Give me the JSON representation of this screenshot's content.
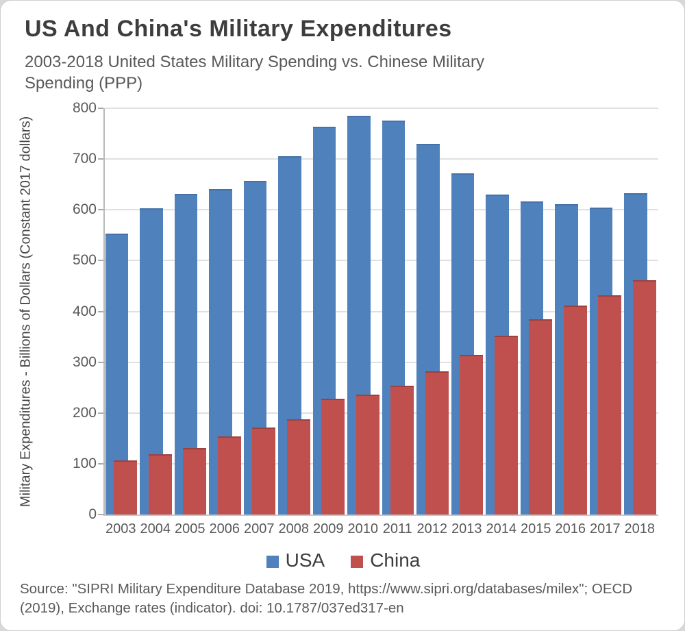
{
  "title": "US And China's Military Expenditures",
  "subtitle": "2003-2018 United States Military Spending vs. Chinese Military Spending (PPP)",
  "source_line": "Source: \"SIPRI Military Expenditure Database 2019, https://www.sipri.org/databases/milex\"; OECD (2019), Exchange rates (indicator). doi: 10.1787/037ed317-en",
  "chart_data": {
    "type": "bar",
    "categories": [
      "2003",
      "2004",
      "2005",
      "2006",
      "2007",
      "2008",
      "2009",
      "2010",
      "2011",
      "2012",
      "2013",
      "2014",
      "2015",
      "2016",
      "2017",
      "2018"
    ],
    "series": [
      {
        "name": "USA",
        "color": "#4F81BD",
        "values": [
          553,
          603,
          632,
          641,
          657,
          705,
          763,
          785,
          776,
          730,
          672,
          630,
          617,
          611,
          605,
          633
        ]
      },
      {
        "name": "China",
        "color": "#C0504D",
        "values": [
          107,
          119,
          131,
          154,
          172,
          188,
          228,
          236,
          254,
          282,
          314,
          352,
          384,
          411,
          432,
          462
        ]
      }
    ],
    "title": "US And China's Military Expenditures",
    "xlabel": "",
    "ylabel": "Military Expenditures - Billions of Dollars (Constant 2017 dollars)",
    "ylim": [
      0,
      800
    ],
    "ytick_step": 100,
    "grid": true,
    "legend_position": "bottom"
  }
}
